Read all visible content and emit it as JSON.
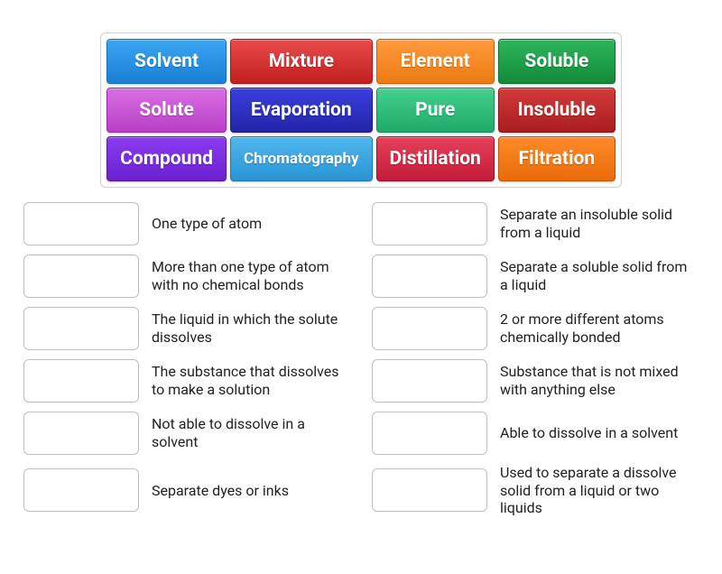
{
  "colors": {
    "blue": {
      "top": "#3aa6f2",
      "bottom": "#1b7ed6",
      "border": "#1b6fb8"
    },
    "red": {
      "top": "#e94b4b",
      "bottom": "#c21f1f",
      "border": "#a41818"
    },
    "orange": {
      "top": "#ff9a3d",
      "bottom": "#ec7a12",
      "border": "#c96408"
    },
    "green": {
      "top": "#2bb65a",
      "bottom": "#148a3a",
      "border": "#0f6e2e"
    },
    "pink": {
      "top": "#d96fe3",
      "bottom": "#b93ec7",
      "border": "#9a2ba7"
    },
    "indigo": {
      "top": "#3a3fdd",
      "bottom": "#2325a8",
      "border": "#1c1d86"
    },
    "teal": {
      "top": "#45d08d",
      "bottom": "#1faa6a",
      "border": "#168a54"
    },
    "darkred": {
      "top": "#d43a3a",
      "bottom": "#a81e1e",
      "border": "#861616"
    },
    "purple": {
      "top": "#8a3df0",
      "bottom": "#6a1fd0",
      "border": "#5516aa"
    },
    "skyblue": {
      "top": "#4fb7ee",
      "bottom": "#2a93d4",
      "border": "#1f78b0"
    },
    "crimson": {
      "top": "#e6405a",
      "bottom": "#c21c38",
      "border": "#9e1229"
    },
    "deeporange": {
      "top": "#ff8a2a",
      "bottom": "#e86b08",
      "border": "#c05505"
    }
  },
  "tiles": [
    {
      "label": "Solvent",
      "color": "blue"
    },
    {
      "label": "Mixture",
      "color": "red"
    },
    {
      "label": "Element",
      "color": "orange"
    },
    {
      "label": "Soluble",
      "color": "green"
    },
    {
      "label": "Solute",
      "color": "pink"
    },
    {
      "label": "Evaporation",
      "color": "indigo"
    },
    {
      "label": "Pure",
      "color": "teal"
    },
    {
      "label": "Insoluble",
      "color": "darkred"
    },
    {
      "label": "Compound",
      "color": "purple"
    },
    {
      "label": "Chromatography",
      "color": "skyblue",
      "small": true
    },
    {
      "label": "Distillation",
      "color": "crimson"
    },
    {
      "label": "Filtration",
      "color": "deeporange"
    }
  ],
  "definitions": {
    "left": [
      "One type of atom",
      "More than one type of atom with no chemical bonds",
      "The liquid in which the solute dissolves",
      "The substance that dissolves to make a solution",
      "Not able to dissolve in a solvent",
      "Separate dyes or inks"
    ],
    "right": [
      "Separate an insoluble solid from a liquid",
      "Separate a soluble solid from a liquid",
      "2 or more different atoms chemically bonded",
      "Substance that is not mixed with anything else",
      "Able to dissolve in a solvent",
      "Used to separate a dissolve solid from a liquid or two liquids"
    ]
  }
}
